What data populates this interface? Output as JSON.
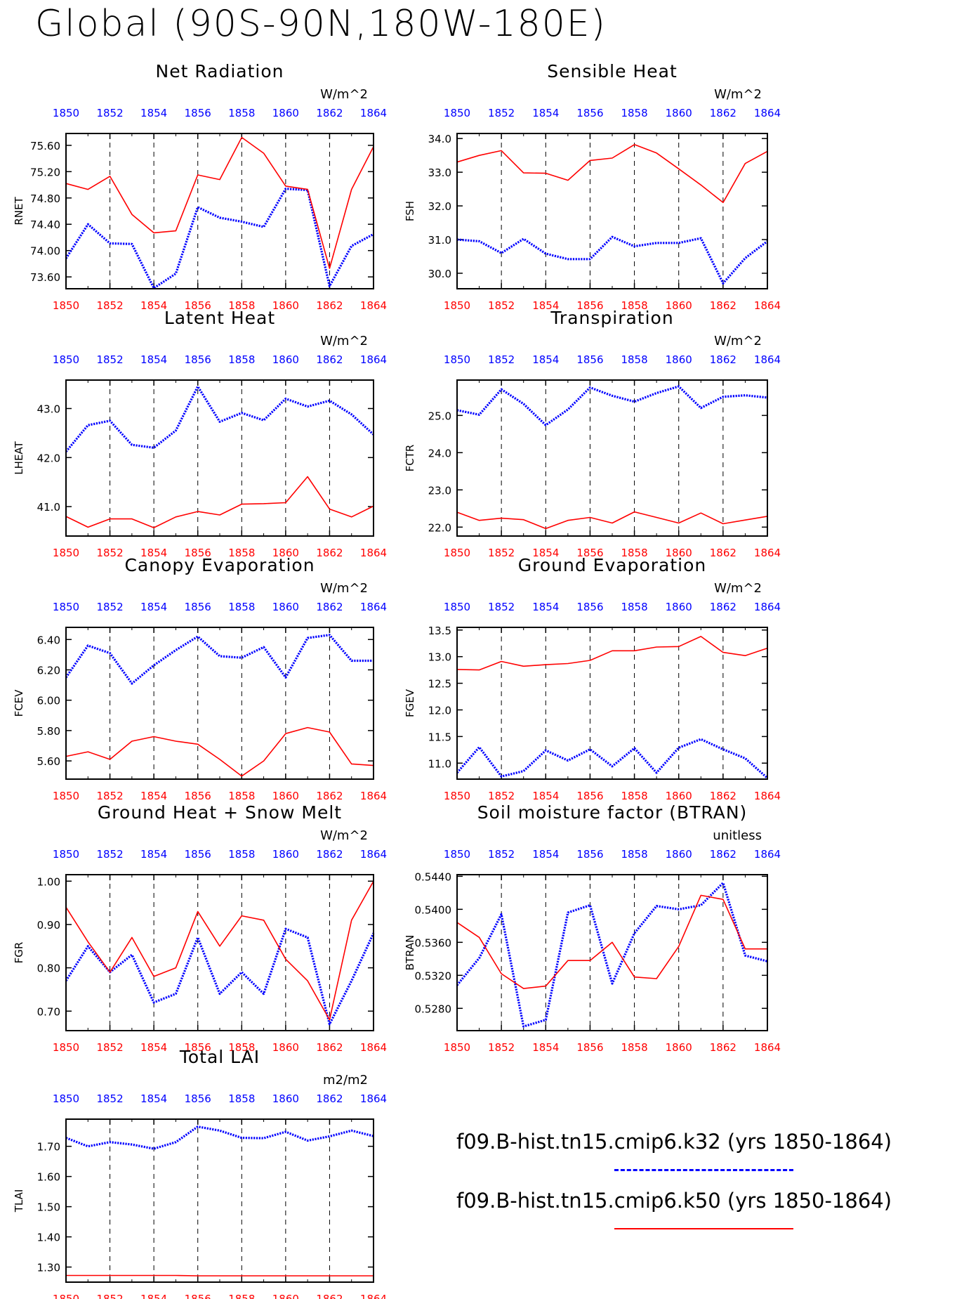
{
  "page_title": "Global (90S-90N,180W-180E)",
  "colors": {
    "case1": "#0000ff",
    "case2": "#ff0000",
    "axis": "#000000"
  },
  "legend": [
    {
      "label": "f09.B-hist.tn15.cmip6.k32 (yrs 1850-1864)",
      "color": "#0000ff",
      "style": "dashed"
    },
    {
      "label": "f09.B-hist.tn15.cmip6.k50 (yrs 1850-1864)",
      "color": "#ff0000",
      "style": "solid"
    }
  ],
  "chart_data": [
    {
      "type": "line",
      "title": "Net Radiation",
      "ylabel": "RNET",
      "units": "W/m^2",
      "x": [
        1850,
        1851,
        1852,
        1853,
        1854,
        1855,
        1856,
        1857,
        1858,
        1859,
        1860,
        1861,
        1862,
        1863,
        1864
      ],
      "xticks": [
        "1850",
        "1852",
        "1854",
        "1856",
        "1858",
        "1860",
        "1862",
        "1864"
      ],
      "ylim": [
        73.42,
        75.78
      ],
      "yticks": [
        "73.60",
        "74.00",
        "74.40",
        "74.80",
        "75.20",
        "75.60"
      ],
      "series": [
        {
          "values": [
            73.88,
            74.4,
            74.11,
            74.1,
            73.43,
            73.65,
            74.66,
            74.5,
            74.44,
            74.36,
            74.94,
            74.92,
            73.46,
            74.07,
            74.25
          ]
        },
        {
          "values": [
            75.02,
            74.93,
            75.13,
            74.55,
            74.27,
            74.3,
            75.15,
            75.08,
            75.72,
            75.48,
            74.98,
            74.93,
            73.73,
            74.93,
            75.58
          ]
        }
      ]
    },
    {
      "type": "line",
      "title": "Sensible Heat",
      "ylabel": "FSH",
      "units": "W/m^2",
      "x": [
        1850,
        1851,
        1852,
        1853,
        1854,
        1855,
        1856,
        1857,
        1858,
        1859,
        1860,
        1861,
        1862,
        1863,
        1864
      ],
      "xticks": [
        "1850",
        "1852",
        "1854",
        "1856",
        "1858",
        "1860",
        "1862",
        "1864"
      ],
      "ylim": [
        29.54,
        34.15
      ],
      "yticks": [
        "30.0",
        "31.0",
        "32.0",
        "33.0",
        "34.0"
      ],
      "series": [
        {
          "values": [
            31.0,
            30.95,
            30.6,
            31.02,
            30.58,
            30.42,
            30.42,
            31.08,
            30.8,
            30.9,
            30.9,
            31.04,
            29.7,
            30.45,
            30.95
          ]
        },
        {
          "values": [
            33.3,
            33.5,
            33.64,
            32.98,
            32.97,
            32.76,
            33.35,
            33.42,
            33.82,
            33.57,
            33.1,
            32.62,
            32.1,
            33.26,
            33.62
          ]
        }
      ]
    },
    {
      "type": "line",
      "title": "Latent Heat",
      "ylabel": "LHEAT",
      "units": "W/m^2",
      "x": [
        1850,
        1851,
        1852,
        1853,
        1854,
        1855,
        1856,
        1857,
        1858,
        1859,
        1860,
        1861,
        1862,
        1863,
        1864
      ],
      "xticks": [
        "1850",
        "1852",
        "1854",
        "1856",
        "1858",
        "1860",
        "1862",
        "1864"
      ],
      "ylim": [
        40.4,
        43.58
      ],
      "yticks": [
        "41.0",
        "42.0",
        "43.0"
      ],
      "series": [
        {
          "values": [
            42.12,
            42.66,
            42.75,
            42.26,
            42.2,
            42.55,
            43.45,
            42.73,
            42.91,
            42.76,
            43.2,
            43.04,
            43.16,
            42.88,
            42.47
          ]
        },
        {
          "values": [
            40.8,
            40.58,
            40.75,
            40.75,
            40.57,
            40.79,
            40.9,
            40.83,
            41.05,
            41.06,
            41.08,
            41.61,
            40.95,
            40.79,
            41.01
          ]
        }
      ]
    },
    {
      "type": "line",
      "title": "Transpiration",
      "ylabel": "FCTR",
      "units": "W/m^2",
      "x": [
        1850,
        1851,
        1852,
        1853,
        1854,
        1855,
        1856,
        1857,
        1858,
        1859,
        1860,
        1861,
        1862,
        1863,
        1864
      ],
      "xticks": [
        "1850",
        "1852",
        "1854",
        "1856",
        "1858",
        "1860",
        "1862",
        "1864"
      ],
      "ylim": [
        21.76,
        25.95
      ],
      "yticks": [
        "22.0",
        "23.0",
        "24.0",
        "25.0"
      ],
      "series": [
        {
          "values": [
            25.14,
            25.02,
            25.7,
            25.31,
            24.74,
            25.16,
            25.75,
            25.53,
            25.37,
            25.6,
            25.78,
            25.2,
            25.5,
            25.54,
            25.48
          ]
        },
        {
          "values": [
            22.4,
            22.18,
            22.24,
            22.2,
            21.96,
            22.18,
            22.26,
            22.11,
            22.41,
            22.26,
            22.11,
            22.38,
            22.09,
            22.19,
            22.29
          ]
        }
      ]
    },
    {
      "type": "line",
      "title": "Canopy Evaporation",
      "ylabel": "FCEV",
      "units": "W/m^2",
      "x": [
        1850,
        1851,
        1852,
        1853,
        1854,
        1855,
        1856,
        1857,
        1858,
        1859,
        1860,
        1861,
        1862,
        1863,
        1864
      ],
      "xticks": [
        "1850",
        "1852",
        "1854",
        "1856",
        "1858",
        "1860",
        "1862",
        "1864"
      ],
      "ylim": [
        5.48,
        6.48
      ],
      "yticks": [
        "5.60",
        "5.80",
        "6.00",
        "6.20",
        "6.40"
      ],
      "series": [
        {
          "values": [
            6.15,
            6.36,
            6.31,
            6.11,
            6.23,
            6.33,
            6.42,
            6.29,
            6.28,
            6.35,
            6.15,
            6.41,
            6.43,
            6.26,
            6.26
          ]
        },
        {
          "values": [
            5.63,
            5.66,
            5.61,
            5.73,
            5.76,
            5.73,
            5.71,
            5.61,
            5.5,
            5.6,
            5.78,
            5.82,
            5.79,
            5.58,
            5.57
          ]
        }
      ]
    },
    {
      "type": "line",
      "title": "Ground Evaporation",
      "ylabel": "FGEV",
      "units": "W/m^2",
      "x": [
        1850,
        1851,
        1852,
        1853,
        1854,
        1855,
        1856,
        1857,
        1858,
        1859,
        1860,
        1861,
        1862,
        1863,
        1864
      ],
      "xticks": [
        "1850",
        "1852",
        "1854",
        "1856",
        "1858",
        "1860",
        "1862",
        "1864"
      ],
      "ylim": [
        10.7,
        13.55
      ],
      "yticks": [
        "11.0",
        "11.5",
        "12.0",
        "12.5",
        "13.0",
        "13.5"
      ],
      "series": [
        {
          "values": [
            10.82,
            11.3,
            10.75,
            10.85,
            11.24,
            11.05,
            11.26,
            10.94,
            11.28,
            10.82,
            11.29,
            11.45,
            11.26,
            11.09,
            10.72
          ]
        },
        {
          "values": [
            12.76,
            12.75,
            12.91,
            12.82,
            12.85,
            12.87,
            12.93,
            13.11,
            13.11,
            13.18,
            13.19,
            13.38,
            13.08,
            13.02,
            13.16
          ]
        }
      ]
    },
    {
      "type": "line",
      "title": "Ground Heat + Snow Melt",
      "ylabel": "FGR",
      "units": "W/m^2",
      "x": [
        1850,
        1851,
        1852,
        1853,
        1854,
        1855,
        1856,
        1857,
        1858,
        1859,
        1860,
        1861,
        1862,
        1863,
        1864
      ],
      "xticks": [
        "1850",
        "1852",
        "1854",
        "1856",
        "1858",
        "1860",
        "1862",
        "1864"
      ],
      "ylim": [
        0.655,
        1.015
      ],
      "yticks": [
        "0.70",
        "0.80",
        "0.90",
        "1.00"
      ],
      "series": [
        {
          "values": [
            0.77,
            0.85,
            0.79,
            0.83,
            0.72,
            0.74,
            0.87,
            0.74,
            0.79,
            0.74,
            0.89,
            0.87,
            0.67,
            0.77,
            0.88
          ]
        },
        {
          "values": [
            0.94,
            0.86,
            0.79,
            0.87,
            0.78,
            0.8,
            0.93,
            0.85,
            0.92,
            0.91,
            0.82,
            0.77,
            0.68,
            0.91,
            1.0
          ]
        }
      ]
    },
    {
      "type": "line",
      "title": "Soil moisture factor (BTRAN)",
      "ylabel": "BTRAN",
      "units": "unitless",
      "x": [
        1850,
        1851,
        1852,
        1853,
        1854,
        1855,
        1856,
        1857,
        1858,
        1859,
        1860,
        1861,
        1862,
        1863,
        1864
      ],
      "xticks": [
        "1850",
        "1852",
        "1854",
        "1856",
        "1858",
        "1860",
        "1862",
        "1864"
      ],
      "ylim": [
        0.5253,
        0.5442
      ],
      "yticks": [
        "0.5280",
        "0.5320",
        "0.5360",
        "0.5400",
        "0.5440"
      ],
      "series": [
        {
          "values": [
            0.5308,
            0.5341,
            0.5394,
            0.5258,
            0.5266,
            0.5396,
            0.5405,
            0.531,
            0.5371,
            0.5404,
            0.54,
            0.5405,
            0.5432,
            0.5344,
            0.5337
          ]
        },
        {
          "values": [
            0.5384,
            0.5366,
            0.5322,
            0.5304,
            0.5307,
            0.5338,
            0.5338,
            0.536,
            0.5318,
            0.5316,
            0.5355,
            0.5417,
            0.5412,
            0.5352,
            0.5352
          ]
        }
      ]
    },
    {
      "type": "line",
      "title": "Total LAI",
      "ylabel": "TLAI",
      "units": "m2/m2",
      "x": [
        1850,
        1851,
        1852,
        1853,
        1854,
        1855,
        1856,
        1857,
        1858,
        1859,
        1860,
        1861,
        1862,
        1863,
        1864
      ],
      "xticks": [
        "1850",
        "1852",
        "1854",
        "1856",
        "1858",
        "1860",
        "1862",
        "1864"
      ],
      "ylim": [
        1.25,
        1.79
      ],
      "yticks": [
        "1.30",
        "1.40",
        "1.50",
        "1.60",
        "1.70"
      ],
      "series": [
        {
          "values": [
            1.728,
            1.7,
            1.714,
            1.706,
            1.692,
            1.714,
            1.765,
            1.752,
            1.728,
            1.727,
            1.748,
            1.719,
            1.733,
            1.752,
            1.734
          ]
        },
        {
          "values": [
            1.272,
            1.272,
            1.272,
            1.272,
            1.272,
            1.272,
            1.271,
            1.271,
            1.271,
            1.271,
            1.271,
            1.271,
            1.271,
            1.271,
            1.271
          ]
        }
      ]
    }
  ]
}
